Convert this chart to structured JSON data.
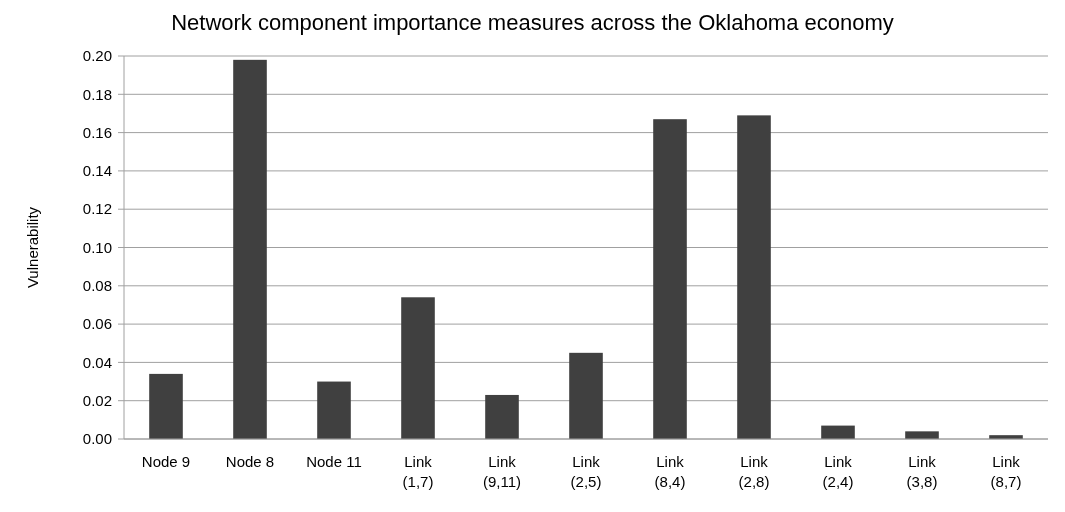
{
  "chart_data": {
    "type": "bar",
    "title": "Network component importance measures across the Oklahoma economy",
    "ylabel": "Vulnerability",
    "categories": [
      "Node 9",
      "Node 8",
      "Node 11",
      "Link (1,7)",
      "Link (9,11)",
      "Link (2,5)",
      "Link (8,4)",
      "Link (2,8)",
      "Link (2,4)",
      "Link (3,8)",
      "Link (8,7)"
    ],
    "values": [
      0.034,
      0.198,
      0.03,
      0.074,
      0.023,
      0.045,
      0.167,
      0.169,
      0.007,
      0.004,
      0.002
    ],
    "color": "#404040",
    "ylim": [
      0,
      0.2
    ],
    "yticks": [
      {
        "value": 0,
        "label": "0.00"
      },
      {
        "value": 0.02,
        "label": "0.02"
      },
      {
        "value": 0.04,
        "label": "0.04"
      },
      {
        "value": 0.06,
        "label": "0.06"
      },
      {
        "value": 0.08,
        "label": "0.08"
      },
      {
        "value": 0.1,
        "label": "0.10"
      },
      {
        "value": 0.12,
        "label": "0.12"
      },
      {
        "value": 0.14,
        "label": "0.14"
      },
      {
        "value": 0.16,
        "label": "0.16"
      },
      {
        "value": 0.18,
        "label": "0.18"
      },
      {
        "value": 0.2,
        "label": "0.20"
      }
    ],
    "grid": "y"
  }
}
